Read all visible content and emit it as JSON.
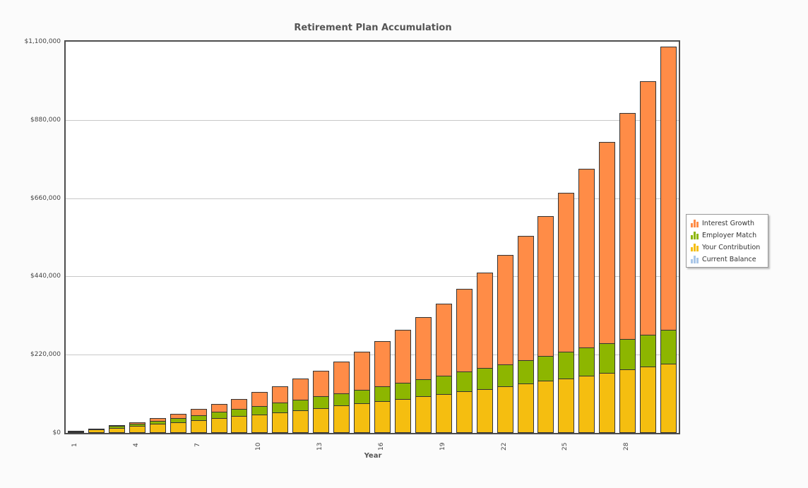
{
  "chart_data": {
    "type": "bar",
    "stacked": true,
    "title": "Retirement Plan Accumulation",
    "xlabel": "Year",
    "ylabel": "",
    "ylim": [
      0,
      1100000
    ],
    "y_ticks": [
      "$0",
      "$220,000",
      "$440,000",
      "$660,000",
      "$880,000",
      "$1,100,000"
    ],
    "y_tick_values": [
      0,
      220000,
      440000,
      660000,
      880000,
      1100000
    ],
    "x_tick_labels": [
      "1",
      "4",
      "7",
      "10",
      "13",
      "16",
      "19",
      "22",
      "25",
      "28"
    ],
    "grid": true,
    "legend_position": "right",
    "categories": [
      1,
      2,
      3,
      4,
      5,
      6,
      7,
      8,
      9,
      10,
      11,
      12,
      13,
      14,
      15,
      16,
      17,
      18,
      19,
      20,
      21,
      22,
      23,
      24,
      25,
      26,
      27,
      28,
      29,
      30
    ],
    "series": [
      {
        "name": "Current Balance",
        "color": "#a9c6e8",
        "values": [
          0,
          0,
          0,
          0,
          0,
          0,
          0,
          0,
          0,
          0,
          0,
          0,
          0,
          0,
          0,
          0,
          0,
          0,
          0,
          0,
          0,
          0,
          0,
          0,
          0,
          0,
          0,
          0,
          0,
          0
        ]
      },
      {
        "name": "Your Contribution",
        "color": "#f5be10",
        "values": [
          4800,
          9700,
          14700,
          19800,
          25000,
          30300,
          35700,
          41200,
          46800,
          52600,
          58400,
          64400,
          70500,
          76700,
          83000,
          89500,
          96100,
          102800,
          109600,
          116600,
          123800,
          131000,
          138500,
          146000,
          153700,
          161600,
          169700,
          177800,
          186200,
          194700
        ]
      },
      {
        "name": "Employer Match",
        "color": "#8db600",
        "values": [
          2400,
          4800,
          7300,
          9900,
          12500,
          15100,
          17800,
          20600,
          23400,
          26300,
          29200,
          32200,
          35200,
          38300,
          41500,
          44700,
          48000,
          51400,
          54800,
          58300,
          61900,
          65500,
          69200,
          73000,
          76900,
          80800,
          84800,
          88900,
          93100,
          97400
        ]
      },
      {
        "name": "Interest Growth",
        "color": "#ff8c47",
        "values": [
          2700,
          2700,
          5100,
          5300,
          9400,
          13300,
          19100,
          24700,
          32000,
          41300,
          50300,
          63100,
          75700,
          92100,
          110300,
          130300,
          152100,
          177600,
          204900,
          236000,
          270800,
          309300,
          351600,
          397600,
          451300,
          506800,
          570500,
          638700,
          715800,
          799400
        ]
      }
    ]
  },
  "legend": {
    "items": [
      {
        "label": "Interest Growth",
        "color": "#ff8c47"
      },
      {
        "label": "Employer Match",
        "color": "#8db600"
      },
      {
        "label": "Your Contribution",
        "color": "#f5be10"
      },
      {
        "label": "Current Balance",
        "color": "#a9c6e8"
      }
    ]
  }
}
